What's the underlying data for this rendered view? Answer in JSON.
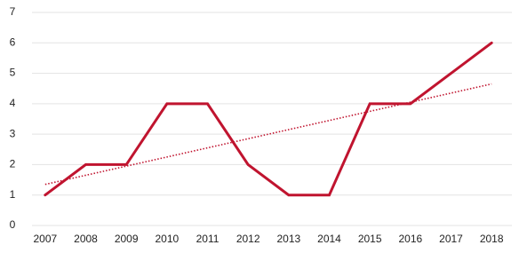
{
  "chart_data": {
    "type": "line",
    "categories": [
      "2007",
      "2008",
      "2009",
      "2010",
      "2011",
      "2012",
      "2013",
      "2014",
      "2015",
      "2016",
      "2017",
      "2018"
    ],
    "series": [
      {
        "color": "#c0142f",
        "style": "solid",
        "values": [
          1,
          2,
          2,
          4,
          4,
          2,
          1,
          1,
          4,
          4,
          5,
          6
        ]
      },
      {
        "color": "#c0142f",
        "style": "dotted",
        "values": [
          1.35,
          1.65,
          1.95,
          2.25,
          2.55,
          2.85,
          3.15,
          3.45,
          3.75,
          4.05,
          4.35,
          4.65
        ]
      }
    ],
    "ylim": [
      0,
      7
    ],
    "yticks": [
      0,
      1,
      2,
      3,
      4,
      5,
      6,
      7
    ],
    "grid": true
  }
}
